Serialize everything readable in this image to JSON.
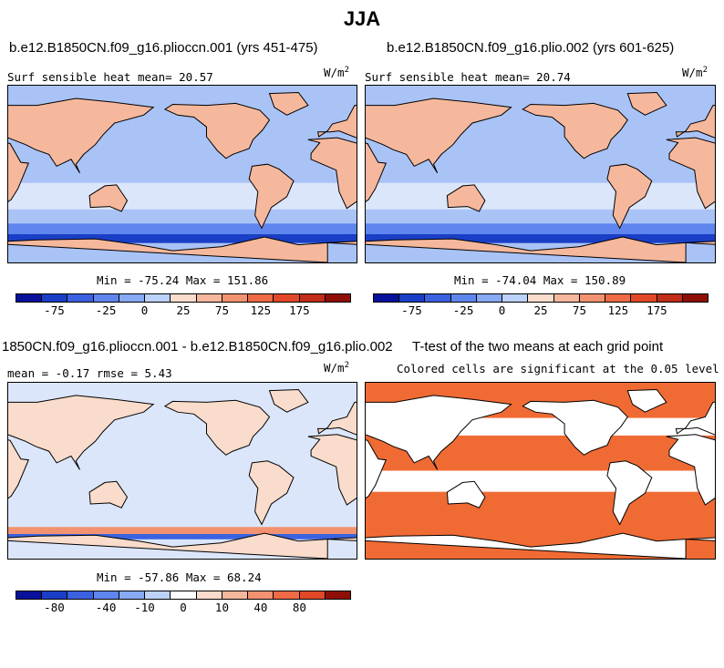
{
  "figure_title": "JJA",
  "colorbar_colors": [
    "#08119a",
    "#1a3fc6",
    "#3a62e0",
    "#5e86ee",
    "#88aaf4",
    "#bcd2fa",
    "#f9dccb",
    "#f6b89c",
    "#f39270",
    "#ef6a46",
    "#e04828",
    "#c02d18",
    "#8f0f08"
  ],
  "diff_colorbar_colors": [
    "#08119a",
    "#1a3fc6",
    "#3a62e0",
    "#5e86ee",
    "#88aaf4",
    "#bcd2fa",
    "#ffffff",
    "#f9dccb",
    "#f6b89c",
    "#f39270",
    "#ef6a46",
    "#e04828",
    "#8f0f08"
  ],
  "panels": {
    "top_left": {
      "title": "b.e12.B1850CN.f09_g16.plioccn.001 (yrs 451-475)",
      "subtitle": "Surf sensible heat   mean=  20.57",
      "units": "W/m",
      "units_exp": "2",
      "minmax": "Min = -75.24 Max = 151.86"
    },
    "top_right": {
      "title": "b.e12.B1850CN.f09_g16.plio.002 (yrs 601-625)",
      "subtitle": "Surf sensible heat   mean=  20.74",
      "units": "W/m",
      "units_exp": "2",
      "minmax": "Min = -74.04 Max = 150.89"
    },
    "bottom_left": {
      "title": "1850CN.f09_g16.plioccn.001 - b.e12.B1850CN.f09_g16.plio.002",
      "subtitle": "mean =  -0.17    rmse =   5.43",
      "units": "W/m",
      "units_exp": "2",
      "minmax": "Min = -57.86 Max =  68.24"
    },
    "bottom_right": {
      "title": "T-test of the two means at each grid point",
      "subtitle": "Colored cells are significant at the 0.05 level"
    }
  },
  "chart_data": [
    {
      "type": "heatmap",
      "title": "b.e12.B1850CN.f09_g16.plioccn.001 (yrs 451-475)",
      "variable": "Surf sensible heat",
      "units": "W/m2",
      "mean": 20.57,
      "min": -75.24,
      "max": 151.86,
      "colorbar_ticks": [
        "-75",
        "-25",
        "0",
        "25",
        "75",
        "125",
        "175"
      ]
    },
    {
      "type": "heatmap",
      "title": "b.e12.B1850CN.f09_g16.plio.002 (yrs 601-625)",
      "variable": "Surf sensible heat",
      "units": "W/m2",
      "mean": 20.74,
      "min": -74.04,
      "max": 150.89,
      "colorbar_ticks": [
        "-75",
        "-25",
        "0",
        "25",
        "75",
        "125",
        "175"
      ]
    },
    {
      "type": "heatmap",
      "title": "1850CN.f09_g16.plioccn.001 - b.e12.B1850CN.f09_g16.plio.002",
      "units": "W/m2",
      "mean": -0.17,
      "rmse": 5.43,
      "min": -57.86,
      "max": 68.24,
      "colorbar_ticks": [
        "-80",
        "-40",
        "-10",
        "0",
        "10",
        "40",
        "80"
      ]
    },
    {
      "type": "heatmap",
      "title": "T-test of the two means at each grid point",
      "note": "Colored cells are significant at the 0.05 level",
      "significance_level": 0.05
    }
  ]
}
